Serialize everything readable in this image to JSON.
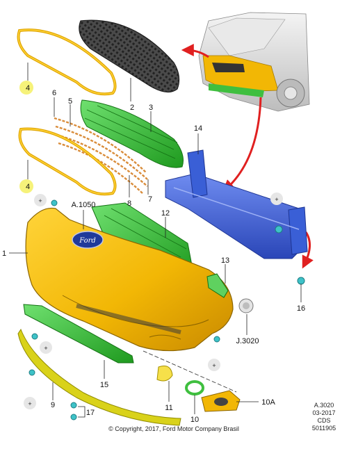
{
  "callouts": {
    "c1": "1",
    "c2": "2",
    "c3": "3",
    "c4a": "4",
    "c4b": "4",
    "c5": "5",
    "c6": "6",
    "c7": "7",
    "c8": "8",
    "c9": "9",
    "c10": "10",
    "c10a": "10A",
    "c11": "11",
    "c12": "12",
    "c13": "13",
    "c14": "14",
    "c15": "15",
    "c16": "16",
    "c17": "17",
    "ref_a1050": "A.1050",
    "ref_j3020": "J.3020"
  },
  "logo_text": "Ford",
  "plus_symbol": "+",
  "footer": {
    "copyright": "© Copyright, 2017, Ford Motor Company Brasil",
    "ref_code": "A.3020",
    "date": "03-2017",
    "dept": "CDS",
    "doc_number": "5011905"
  },
  "colors": {
    "bumper": "#f2b705",
    "grille": "#3a3a3a",
    "lower_grille": "#2fb52f",
    "absorber": "#2fb52f",
    "beam": "#3a5fd6",
    "fastener": "#3ec2c8",
    "lower_spoiler": "#d9d21a",
    "arrow": "#e02020",
    "highlight": "#f6f27a"
  }
}
